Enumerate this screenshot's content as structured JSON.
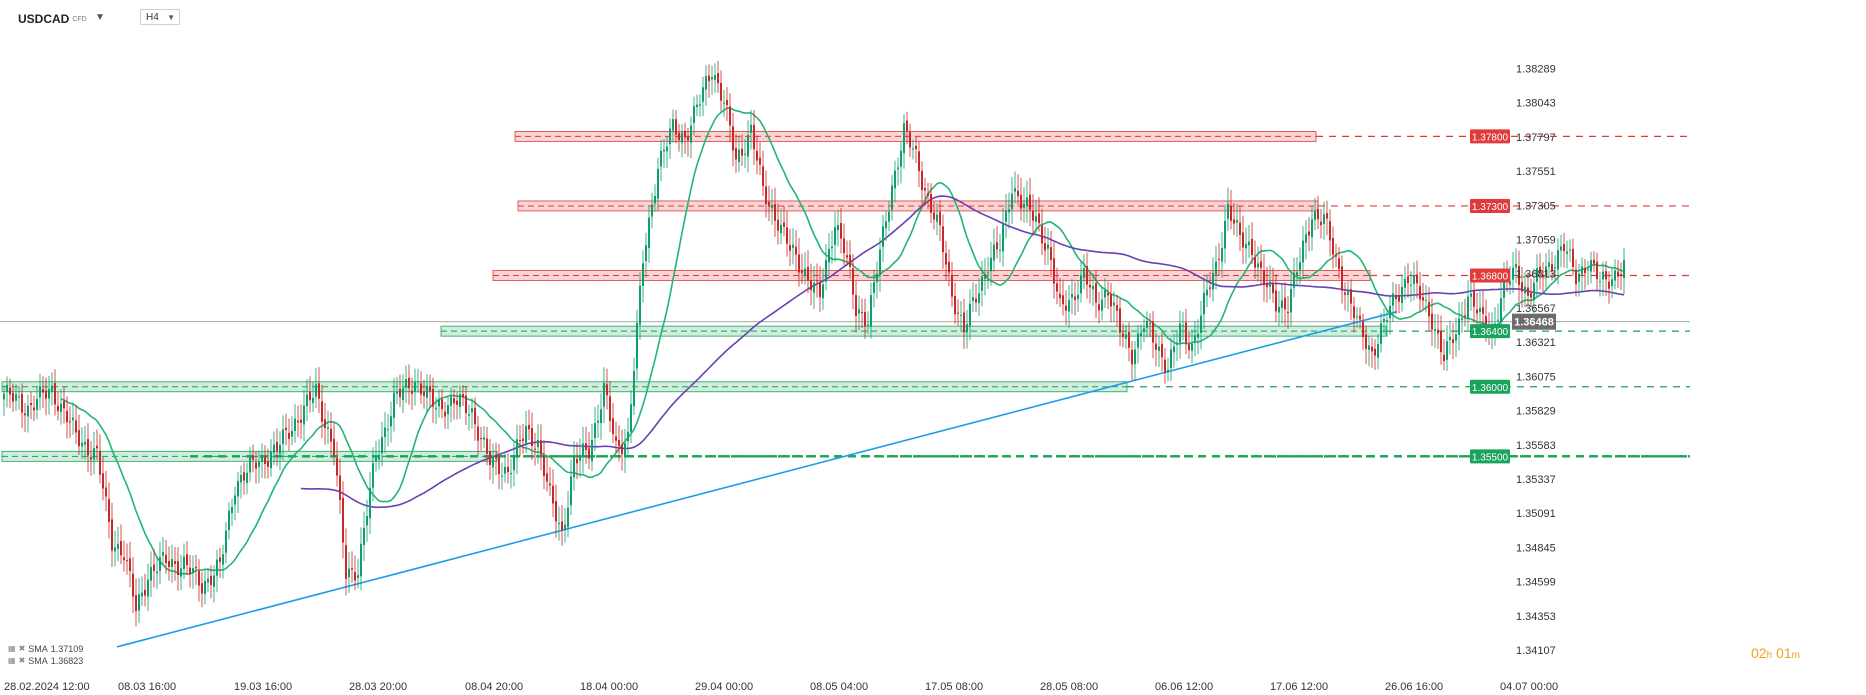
{
  "header": {
    "symbol": "USDCAD",
    "symbol_type": "CFD",
    "timeframe": "H4"
  },
  "countdown": {
    "hours": "02",
    "h_unit": "h",
    "minutes": "01",
    "m_unit": "m"
  },
  "legend": [
    {
      "label": "SMA",
      "value": "1.37109"
    },
    {
      "label": "SMA",
      "value": "1.36823"
    }
  ],
  "colors": {
    "bull": "#0e9f6e",
    "bear": "#c82828",
    "resistance": "#e23a3a",
    "support": "#1aa35a",
    "sma_fast": "#22b573",
    "sma_slow": "#6a3fb5",
    "trendline": "#1c9ce8",
    "current_price_bg": "#6b6b6b"
  },
  "chart_data": {
    "type": "candlestick",
    "ylim": [
      1.3405,
      1.3845
    ],
    "y_ticks": [
      "1.38289",
      "1.38043",
      "1.37797",
      "1.37551",
      "1.37305",
      "1.37059",
      "1.36813",
      "1.36567",
      "1.36321",
      "1.36075",
      "1.35829",
      "1.35583",
      "1.35337",
      "1.35091",
      "1.34845",
      "1.34599",
      "1.34353",
      "1.34107"
    ],
    "x_ticks": [
      "28.02.2024 12:00",
      "08.03 16:00",
      "19.03 16:00",
      "28.03 20:00",
      "08.04 20:00",
      "18.04 00:00",
      "29.04 00:00",
      "08.05 04:00",
      "17.05 08:00",
      "28.05 08:00",
      "06.06 12:00",
      "17.06 12:00",
      "26.06 16:00",
      "04.07 00:00"
    ],
    "current_price": "1.36468",
    "levels": [
      {
        "label": "1.37800",
        "value": 1.378,
        "kind": "resistance"
      },
      {
        "label": "1.37300",
        "value": 1.373,
        "kind": "resistance"
      },
      {
        "label": "1.36800",
        "value": 1.368,
        "kind": "resistance"
      },
      {
        "label": "1.36400",
        "value": 1.364,
        "kind": "support"
      },
      {
        "label": "1.36000",
        "value": 1.36,
        "kind": "support"
      },
      {
        "label": "1.35500",
        "value": 1.355,
        "kind": "support"
      }
    ],
    "price_path": [
      {
        "x": 0,
        "y": 1.3595
      },
      {
        "x": 8,
        "y": 1.3585
      },
      {
        "x": 16,
        "y": 1.3598
      },
      {
        "x": 24,
        "y": 1.3565
      },
      {
        "x": 31,
        "y": 1.355
      },
      {
        "x": 36,
        "y": 1.349
      },
      {
        "x": 40,
        "y": 1.348
      },
      {
        "x": 44,
        "y": 1.344
      },
      {
        "x": 48,
        "y": 1.3465
      },
      {
        "x": 54,
        "y": 1.3475
      },
      {
        "x": 60,
        "y": 1.3472
      },
      {
        "x": 66,
        "y": 1.3458
      },
      {
        "x": 72,
        "y": 1.347
      },
      {
        "x": 77,
        "y": 1.353
      },
      {
        "x": 84,
        "y": 1.3545
      },
      {
        "x": 91,
        "y": 1.3555
      },
      {
        "x": 97,
        "y": 1.3575
      },
      {
        "x": 104,
        "y": 1.3596
      },
      {
        "x": 110,
        "y": 1.3555
      },
      {
        "x": 114,
        "y": 1.3465
      },
      {
        "x": 118,
        "y": 1.347
      },
      {
        "x": 124,
        "y": 1.355
      },
      {
        "x": 130,
        "y": 1.359
      },
      {
        "x": 137,
        "y": 1.3605
      },
      {
        "x": 144,
        "y": 1.3585
      },
      {
        "x": 150,
        "y": 1.359
      },
      {
        "x": 156,
        "y": 1.3582
      },
      {
        "x": 162,
        "y": 1.3545
      },
      {
        "x": 168,
        "y": 1.354
      },
      {
        "x": 174,
        "y": 1.3568
      },
      {
        "x": 178,
        "y": 1.356
      },
      {
        "x": 182,
        "y": 1.352
      },
      {
        "x": 186,
        "y": 1.3495
      },
      {
        "x": 190,
        "y": 1.3545
      },
      {
        "x": 195,
        "y": 1.3555
      },
      {
        "x": 200,
        "y": 1.3598
      },
      {
        "x": 204,
        "y": 1.3555
      },
      {
        "x": 208,
        "y": 1.3565
      },
      {
        "x": 213,
        "y": 1.369
      },
      {
        "x": 218,
        "y": 1.376
      },
      {
        "x": 223,
        "y": 1.3785
      },
      {
        "x": 227,
        "y": 1.378
      },
      {
        "x": 232,
        "y": 1.3805
      },
      {
        "x": 236,
        "y": 1.383
      },
      {
        "x": 240,
        "y": 1.3805
      },
      {
        "x": 244,
        "y": 1.3762
      },
      {
        "x": 249,
        "y": 1.3785
      },
      {
        "x": 253,
        "y": 1.374
      },
      {
        "x": 258,
        "y": 1.372
      },
      {
        "x": 262,
        "y": 1.3698
      },
      {
        "x": 267,
        "y": 1.3683
      },
      {
        "x": 272,
        "y": 1.3664
      },
      {
        "x": 277,
        "y": 1.372
      },
      {
        "x": 280,
        "y": 1.37
      },
      {
        "x": 284,
        "y": 1.3655
      },
      {
        "x": 288,
        "y": 1.365
      },
      {
        "x": 292,
        "y": 1.3695
      },
      {
        "x": 296,
        "y": 1.3745
      },
      {
        "x": 300,
        "y": 1.3783
      },
      {
        "x": 304,
        "y": 1.3765
      },
      {
        "x": 308,
        "y": 1.3735
      },
      {
        "x": 312,
        "y": 1.371
      },
      {
        "x": 316,
        "y": 1.3668
      },
      {
        "x": 320,
        "y": 1.364
      },
      {
        "x": 324,
        "y": 1.3665
      },
      {
        "x": 328,
        "y": 1.369
      },
      {
        "x": 332,
        "y": 1.37
      },
      {
        "x": 336,
        "y": 1.3745
      },
      {
        "x": 340,
        "y": 1.373
      },
      {
        "x": 344,
        "y": 1.372
      },
      {
        "x": 348,
        "y": 1.37
      },
      {
        "x": 352,
        "y": 1.3655
      },
      {
        "x": 356,
        "y": 1.3665
      },
      {
        "x": 360,
        "y": 1.368
      },
      {
        "x": 364,
        "y": 1.366
      },
      {
        "x": 368,
        "y": 1.367
      },
      {
        "x": 372,
        "y": 1.364
      },
      {
        "x": 376,
        "y": 1.3625
      },
      {
        "x": 380,
        "y": 1.3645
      },
      {
        "x": 384,
        "y": 1.363
      },
      {
        "x": 388,
        "y": 1.3615
      },
      {
        "x": 392,
        "y": 1.364
      },
      {
        "x": 396,
        "y": 1.363
      },
      {
        "x": 400,
        "y": 1.366
      },
      {
        "x": 404,
        "y": 1.3685
      },
      {
        "x": 408,
        "y": 1.373
      },
      {
        "x": 412,
        "y": 1.3705
      },
      {
        "x": 416,
        "y": 1.37
      },
      {
        "x": 420,
        "y": 1.3675
      },
      {
        "x": 424,
        "y": 1.366
      },
      {
        "x": 428,
        "y": 1.366
      },
      {
        "x": 432,
        "y": 1.369
      },
      {
        "x": 436,
        "y": 1.3725
      },
      {
        "x": 440,
        "y": 1.372
      },
      {
        "x": 444,
        "y": 1.369
      },
      {
        "x": 448,
        "y": 1.3665
      },
      {
        "x": 452,
        "y": 1.364
      },
      {
        "x": 456,
        "y": 1.3625
      },
      {
        "x": 460,
        "y": 1.3645
      },
      {
        "x": 464,
        "y": 1.3665
      },
      {
        "x": 468,
        "y": 1.368
      },
      {
        "x": 472,
        "y": 1.3665
      },
      {
        "x": 476,
        "y": 1.365
      },
      {
        "x": 480,
        "y": 1.362
      },
      {
        "x": 484,
        "y": 1.364
      },
      {
        "x": 488,
        "y": 1.3665
      },
      {
        "x": 492,
        "y": 1.365
      },
      {
        "x": 496,
        "y": 1.364
      },
      {
        "x": 500,
        "y": 1.367
      },
      {
        "x": 504,
        "y": 1.3685
      },
      {
        "x": 508,
        "y": 1.3665
      },
      {
        "x": 512,
        "y": 1.368
      },
      {
        "x": 516,
        "y": 1.369
      },
      {
        "x": 520,
        "y": 1.37
      },
      {
        "x": 524,
        "y": 1.368
      },
      {
        "x": 528,
        "y": 1.369
      },
      {
        "x": 532,
        "y": 1.3675
      },
      {
        "x": 540,
        "y": 1.3685
      }
    ]
  }
}
